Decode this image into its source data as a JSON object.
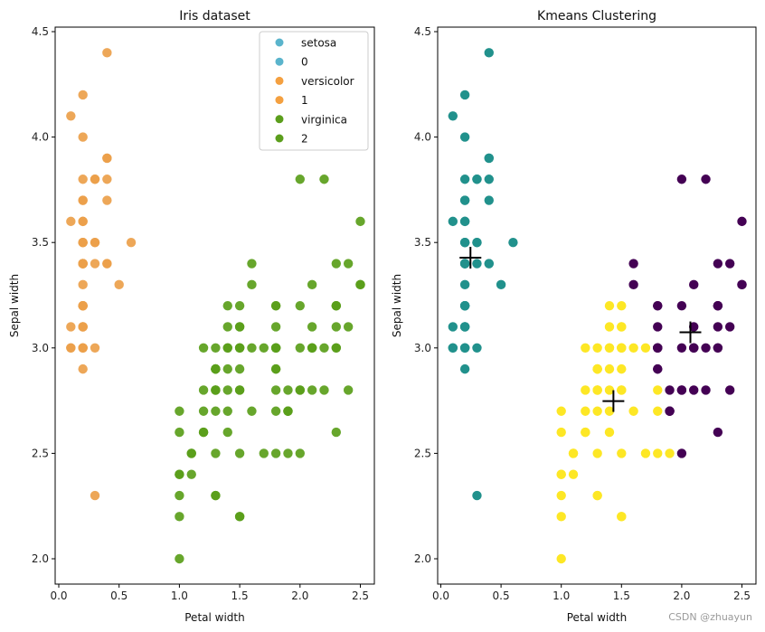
{
  "chart_data": [
    {
      "type": "scatter",
      "title": "Iris dataset",
      "xlabel": "Petal width",
      "ylabel": "Sepal width",
      "xlim": [
        -0.02,
        2.62
      ],
      "ylim": [
        1.88,
        4.52
      ],
      "xticks": [
        "0.0",
        "0.5",
        "1.0",
        "1.5",
        "2.0",
        "2.5"
      ],
      "yticks": [
        "2.0",
        "2.5",
        "3.0",
        "3.5",
        "4.0",
        "4.5"
      ],
      "grid": false,
      "legend": {
        "placement": "top-right",
        "entries": [
          {
            "label": "setosa",
            "color": "#5ab4cc"
          },
          {
            "label": "0",
            "color": "#5ab4cc"
          },
          {
            "label": "versicolor",
            "color": "#f4a040"
          },
          {
            "label": "1",
            "color": "#f4a040"
          },
          {
            "label": "virginica",
            "color": "#5b9e1c"
          },
          {
            "label": "2",
            "color": "#5b9e1c"
          }
        ]
      },
      "group_colors": {
        "setosa": "#eba04a",
        "other": "#5a9e1a"
      },
      "series": [
        {
          "name": "setosa",
          "color_key": "setosa",
          "x": [
            0.2,
            0.2,
            0.2,
            0.2,
            0.2,
            0.4,
            0.3,
            0.2,
            0.2,
            0.1,
            0.2,
            0.2,
            0.1,
            0.1,
            0.2,
            0.4,
            0.4,
            0.3,
            0.3,
            0.3,
            0.2,
            0.4,
            0.2,
            0.5,
            0.2,
            0.2,
            0.4,
            0.2,
            0.2,
            0.2,
            0.2,
            0.4,
            0.1,
            0.2,
            0.2,
            0.2,
            0.2,
            0.1,
            0.2,
            0.2,
            0.3,
            0.3,
            0.2,
            0.6,
            0.4,
            0.3,
            0.2,
            0.2,
            0.2,
            0.2
          ],
          "y": [
            3.5,
            3.0,
            3.2,
            3.1,
            3.6,
            3.9,
            3.4,
            3.4,
            2.9,
            3.1,
            3.7,
            3.4,
            3.0,
            3.0,
            4.0,
            4.4,
            3.9,
            3.5,
            3.8,
            3.8,
            3.4,
            3.7,
            3.6,
            3.3,
            3.4,
            3.0,
            3.4,
            3.5,
            3.4,
            3.2,
            3.1,
            3.4,
            4.1,
            4.2,
            3.1,
            3.2,
            3.5,
            3.6,
            3.0,
            3.4,
            3.5,
            2.3,
            3.2,
            3.5,
            3.8,
            3.0,
            3.8,
            3.2,
            3.7,
            3.3
          ]
        },
        {
          "name": "versicolor",
          "color_key": "other",
          "x": [
            1.4,
            1.5,
            1.5,
            1.3,
            1.5,
            1.3,
            1.6,
            1.0,
            1.3,
            1.4,
            1.0,
            1.5,
            1.0,
            1.4,
            1.3,
            1.4,
            1.5,
            1.0,
            1.5,
            1.1,
            1.8,
            1.3,
            1.5,
            1.2,
            1.3,
            1.4,
            1.4,
            1.7,
            1.5,
            1.0,
            1.1,
            1.0,
            1.2,
            1.6,
            1.5,
            1.6,
            1.5,
            1.3,
            1.3,
            1.3,
            1.2,
            1.4,
            1.2,
            1.0,
            1.3,
            1.2,
            1.3,
            1.3,
            1.1,
            1.3
          ],
          "y": [
            3.2,
            3.2,
            3.1,
            2.3,
            2.8,
            2.8,
            3.3,
            2.4,
            2.9,
            2.7,
            2.0,
            3.0,
            2.2,
            2.9,
            2.9,
            3.1,
            3.0,
            2.7,
            2.2,
            2.5,
            3.2,
            2.8,
            2.5,
            2.8,
            2.9,
            3.0,
            2.8,
            3.0,
            2.9,
            2.6,
            2.4,
            2.4,
            2.7,
            2.7,
            3.0,
            3.4,
            3.1,
            2.3,
            3.0,
            2.5,
            2.6,
            3.0,
            2.6,
            2.3,
            2.7,
            3.0,
            2.9,
            2.9,
            2.5,
            2.8
          ]
        },
        {
          "name": "virginica",
          "color_key": "other",
          "x": [
            2.5,
            1.9,
            2.1,
            1.8,
            2.2,
            2.1,
            1.7,
            1.8,
            1.8,
            2.5,
            2.0,
            1.9,
            2.1,
            2.0,
            2.4,
            2.3,
            1.8,
            2.2,
            2.3,
            1.5,
            2.3,
            2.0,
            2.0,
            1.8,
            2.1,
            1.8,
            1.8,
            1.8,
            2.1,
            1.6,
            1.9,
            2.0,
            2.2,
            1.5,
            1.4,
            2.3,
            2.4,
            1.8,
            1.8,
            2.1,
            2.4,
            2.3,
            1.9,
            2.3,
            2.5,
            2.3,
            1.9,
            2.0,
            2.3,
            1.8
          ],
          "y": [
            3.3,
            2.7,
            3.0,
            2.9,
            3.0,
            3.0,
            2.5,
            2.9,
            2.5,
            3.6,
            3.2,
            2.7,
            3.0,
            2.5,
            2.8,
            3.2,
            3.0,
            3.8,
            2.6,
            2.2,
            3.2,
            2.8,
            2.8,
            2.7,
            3.3,
            3.2,
            2.8,
            3.0,
            2.8,
            3.0,
            2.8,
            3.8,
            2.8,
            2.8,
            2.6,
            3.0,
            3.4,
            3.1,
            3.0,
            3.1,
            3.1,
            3.1,
            2.7,
            3.2,
            3.3,
            3.0,
            2.5,
            3.0,
            3.4,
            3.0
          ]
        }
      ]
    },
    {
      "type": "scatter",
      "title": "Kmeans Clustering",
      "xlabel": "Petal width",
      "ylabel": "Sepal width",
      "xlim": [
        -0.02,
        2.62
      ],
      "ylim": [
        1.88,
        4.52
      ],
      "xticks": [
        "0.0",
        "0.5",
        "1.0",
        "1.5",
        "2.0",
        "2.5"
      ],
      "yticks": [
        "2.0",
        "2.5",
        "3.0",
        "3.5",
        "4.0",
        "4.5"
      ],
      "grid": false,
      "cluster_colors": {
        "0": "#440154",
        "1": "#21918c",
        "2": "#fde725"
      },
      "points_source": "same as Iris dataset points, colored by cluster",
      "cluster_rule": "cluster assigned by nearest centroid",
      "centroids": [
        {
          "cluster": 1,
          "x": 0.246,
          "y": 3.428
        },
        {
          "cluster": 2,
          "x": 1.433,
          "y": 2.748
        },
        {
          "cluster": 0,
          "x": 2.072,
          "y": 3.074
        }
      ],
      "centroid_marker": "+"
    }
  ],
  "watermark": "CSDN @zhuayun"
}
